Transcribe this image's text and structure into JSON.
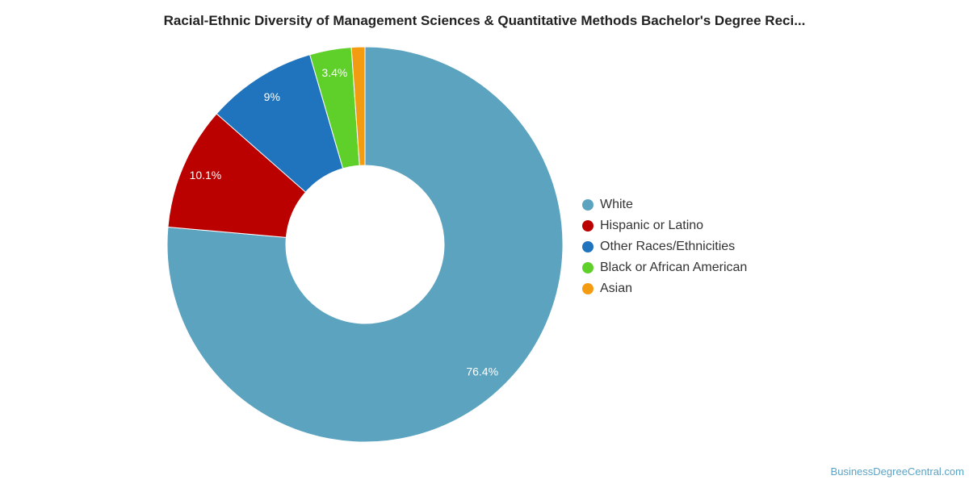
{
  "chart_data": {
    "type": "pie",
    "title": "Racial-Ethnic Diversity of Management Sciences & Quantitative Methods Bachelor's Degree Reci...",
    "donut": true,
    "legend_position": "right",
    "slices": [
      {
        "name": "White",
        "value": 76.4,
        "label": "76.4%",
        "color": "#5ba3bf"
      },
      {
        "name": "Hispanic or Latino",
        "value": 10.1,
        "label": "10.1%",
        "color": "#bb0000"
      },
      {
        "name": "Other Races/Ethnicities",
        "value": 9.0,
        "label": "9%",
        "color": "#1f74bd"
      },
      {
        "name": "Black or African American",
        "value": 3.4,
        "label": "3.4%",
        "color": "#5fcf2a"
      },
      {
        "name": "Asian",
        "value": 1.1,
        "label": "",
        "color": "#f39c12"
      }
    ]
  },
  "watermark": "BusinessDegreeCentral.com"
}
